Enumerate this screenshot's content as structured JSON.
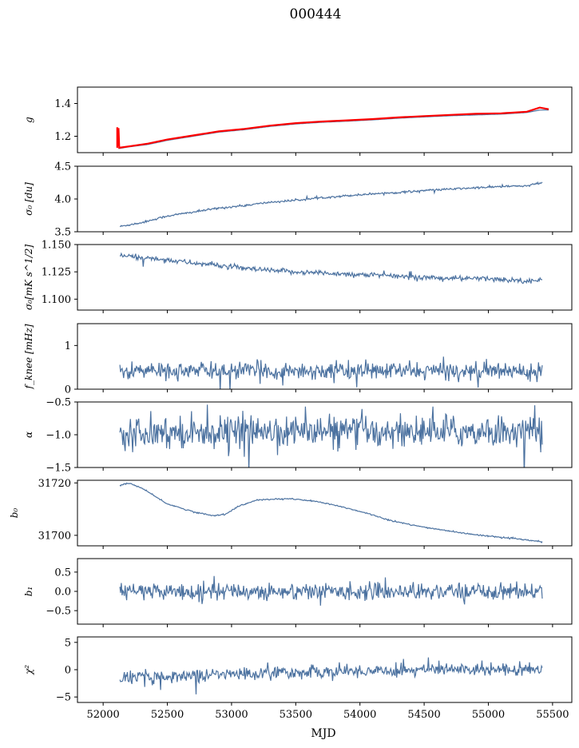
{
  "figure": {
    "title": "000444",
    "xlabel": "MJD"
  },
  "colors": {
    "series": "#4c72a0",
    "fit": "#ff0000",
    "axis": "#000000",
    "background": "#ffffff"
  },
  "chart_data": [
    {
      "type": "line",
      "name": "g",
      "ylabel": "g",
      "xlim": [
        51800,
        55650
      ],
      "ylim": [
        1.1,
        1.5
      ],
      "yticks": [
        1.2,
        1.4
      ],
      "ytick_labels": [
        "1.2",
        "1.4"
      ],
      "series": [
        {
          "name": "g",
          "x": [
            52120,
            52200,
            52350,
            52500,
            52700,
            52900,
            53100,
            53300,
            53500,
            53700,
            53900,
            54100,
            54300,
            54500,
            54700,
            54900,
            55100,
            55300,
            55400,
            55470
          ],
          "values": [
            1.125,
            1.135,
            1.15,
            1.175,
            1.2,
            1.225,
            1.24,
            1.26,
            1.275,
            1.285,
            1.292,
            1.3,
            1.31,
            1.318,
            1.325,
            1.33,
            1.335,
            1.345,
            1.36,
            1.36
          ]
        },
        {
          "name": "fit",
          "x": [
            52110,
            52110,
            52120,
            52125,
            52200,
            52350,
            52500,
            52700,
            52900,
            53100,
            53300,
            53500,
            53700,
            53900,
            54100,
            54300,
            54500,
            54700,
            54900,
            55100,
            55300,
            55400,
            55470
          ],
          "values": [
            1.255,
            1.13,
            1.25,
            1.13,
            1.138,
            1.155,
            1.18,
            1.205,
            1.23,
            1.245,
            1.265,
            1.28,
            1.29,
            1.297,
            1.305,
            1.315,
            1.323,
            1.33,
            1.337,
            1.34,
            1.35,
            1.375,
            1.365
          ]
        }
      ]
    },
    {
      "type": "line",
      "name": "sigma0_du",
      "ylabel": "σ₀ [du]",
      "xlim": [
        51800,
        55650
      ],
      "ylim": [
        3.5,
        4.5
      ],
      "yticks": [
        3.5,
        4.0,
        4.5
      ],
      "ytick_labels": [
        "3.5",
        "4.0",
        "4.5"
      ],
      "series": [
        {
          "name": "sigma0",
          "noise": 0.008,
          "x": [
            52130,
            52300,
            52500,
            52700,
            52900,
            53100,
            53300,
            53500,
            53700,
            53900,
            54100,
            54300,
            54500,
            54700,
            54900,
            55100,
            55300,
            55420
          ],
          "values": [
            3.58,
            3.64,
            3.74,
            3.8,
            3.86,
            3.9,
            3.95,
            3.98,
            4.02,
            4.05,
            4.08,
            4.1,
            4.13,
            4.15,
            4.17,
            4.19,
            4.2,
            4.25
          ]
        }
      ]
    },
    {
      "type": "line",
      "name": "sigma0_mk",
      "ylabel": "σ₀[mK s^1/2]",
      "xlim": [
        51800,
        55650
      ],
      "ylim": [
        1.09,
        1.15
      ],
      "yticks": [
        1.1,
        1.125,
        1.15
      ],
      "ytick_labels": [
        "1.100",
        "1.125",
        "1.150"
      ],
      "series": [
        {
          "name": "sigma0",
          "noise": 0.0012,
          "x": [
            52130,
            52300,
            52500,
            52700,
            52900,
            53100,
            53300,
            53500,
            53700,
            53900,
            54100,
            54300,
            54500,
            54700,
            54900,
            55100,
            55300,
            55420
          ],
          "values": [
            1.14,
            1.138,
            1.136,
            1.133,
            1.131,
            1.128,
            1.126,
            1.125,
            1.124,
            1.123,
            1.122,
            1.121,
            1.12,
            1.119,
            1.119,
            1.118,
            1.117,
            1.117
          ]
        }
      ]
    },
    {
      "type": "line",
      "name": "fknee",
      "ylabel": "f_knee [mHz]",
      "xlim": [
        51800,
        55650
      ],
      "ylim": [
        0,
        1.5
      ],
      "yticks": [
        0,
        1
      ],
      "ytick_labels": [
        "0",
        "1"
      ],
      "series": [
        {
          "name": "fknee",
          "noise": 0.1,
          "x": [
            52130,
            55420
          ],
          "values": [
            0.42,
            0.42
          ]
        }
      ]
    },
    {
      "type": "line",
      "name": "alpha",
      "ylabel": "α",
      "xlim": [
        51800,
        55650
      ],
      "ylim": [
        -1.5,
        -0.5
      ],
      "yticks": [
        -1.5,
        -1.0,
        -0.5
      ],
      "ytick_labels": [
        "−1.5",
        "−1.0",
        "−0.5"
      ],
      "series": [
        {
          "name": "alpha",
          "noise": 0.12,
          "x": [
            52130,
            55420
          ],
          "values": [
            -0.95,
            -0.95
          ]
        }
      ]
    },
    {
      "type": "line",
      "name": "b0",
      "ylabel": "b₀",
      "xlim": [
        51800,
        55650
      ],
      "ylim": [
        31696,
        31721
      ],
      "yticks": [
        31700,
        31720
      ],
      "ytick_labels": [
        "31700",
        "31720"
      ],
      "series": [
        {
          "name": "b0",
          "noise": 0.12,
          "x": [
            52130,
            52200,
            52300,
            52400,
            52500,
            52700,
            52850,
            52950,
            53050,
            53200,
            53450,
            53650,
            53850,
            54050,
            54250,
            54450,
            54650,
            54850,
            55050,
            55250,
            55420
          ],
          "values": [
            31719,
            31720,
            31718,
            31715,
            31712,
            31709,
            31707.5,
            31708,
            31711,
            31713.5,
            31714,
            31713,
            31711,
            31708.5,
            31705.5,
            31703.5,
            31702,
            31700.5,
            31699.5,
            31698.5,
            31697.5
          ]
        }
      ]
    },
    {
      "type": "line",
      "name": "b1",
      "ylabel": "b₁",
      "xlim": [
        51800,
        55650
      ],
      "ylim": [
        -0.85,
        0.85
      ],
      "yticks": [
        -0.5,
        0.0,
        0.5
      ],
      "ytick_labels": [
        "−0.5",
        "0.0",
        "0.5"
      ],
      "series": [
        {
          "name": "b1",
          "noise": 0.11,
          "x": [
            52130,
            55420
          ],
          "values": [
            0.0,
            0.0
          ]
        }
      ]
    },
    {
      "type": "line",
      "name": "chi2",
      "ylabel": "χ²",
      "xlim": [
        51800,
        55650
      ],
      "ylim": [
        -6,
        6
      ],
      "yticks": [
        -5,
        0,
        5
      ],
      "ytick_labels": [
        "−5",
        "0",
        "5"
      ],
      "series": [
        {
          "name": "chi2",
          "noise": 0.6,
          "x": [
            52130,
            52500,
            52900,
            53300,
            53700,
            54100,
            54500,
            54900,
            55300,
            55420
          ],
          "values": [
            -1.5,
            -1.2,
            -0.9,
            -0.6,
            -0.4,
            -0.2,
            0.0,
            0.1,
            0.2,
            0.2
          ]
        }
      ]
    }
  ],
  "xaxis": {
    "ticks": [
      52000,
      52500,
      53000,
      53500,
      54000,
      54500,
      55000,
      55500
    ],
    "tick_labels": [
      "52000",
      "52500",
      "53000",
      "53500",
      "54000",
      "54500",
      "55000",
      "55500"
    ]
  }
}
